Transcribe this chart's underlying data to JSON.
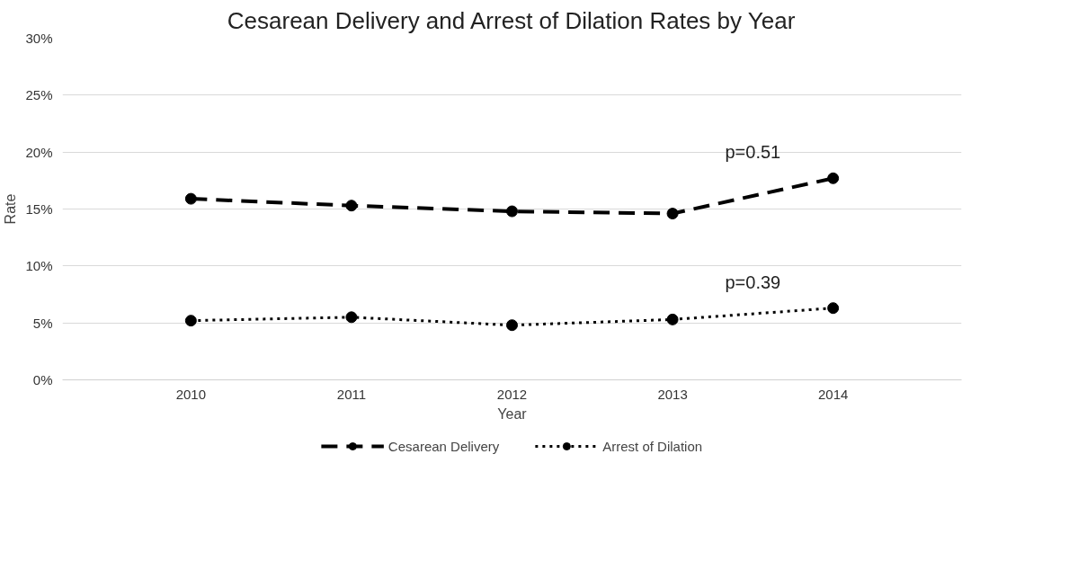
{
  "chart_data": {
    "type": "line",
    "title": "Cesarean Delivery and Arrest of Dilation Rates by Year",
    "xlabel": "Year",
    "ylabel": "Rate",
    "categories": [
      "2010",
      "2011",
      "2012",
      "2013",
      "2014"
    ],
    "series": [
      {
        "name": "Cesarean Delivery",
        "color": "#000000",
        "values": [
          15.9,
          15.3,
          14.8,
          14.6,
          17.7
        ],
        "line_style": "dashed"
      },
      {
        "name": "Arrest of Dilation",
        "color": "#000000",
        "values": [
          5.2,
          5.5,
          4.8,
          5.3,
          6.3
        ],
        "line_style": "dotted"
      }
    ],
    "ylim": [
      0,
      30
    ],
    "yticks": [
      {
        "value": 0,
        "label": "0%"
      },
      {
        "value": 5,
        "label": "5%"
      },
      {
        "value": 10,
        "label": "10%"
      },
      {
        "value": 15,
        "label": "15%"
      },
      {
        "value": 20,
        "label": "20%"
      },
      {
        "value": 25,
        "label": "25%"
      },
      {
        "value": 30,
        "label": "30%"
      }
    ],
    "annotations": [
      "p=0.51",
      "p=0.39"
    ],
    "grid": "y",
    "legend": "bottom",
    "marker": "circle"
  }
}
